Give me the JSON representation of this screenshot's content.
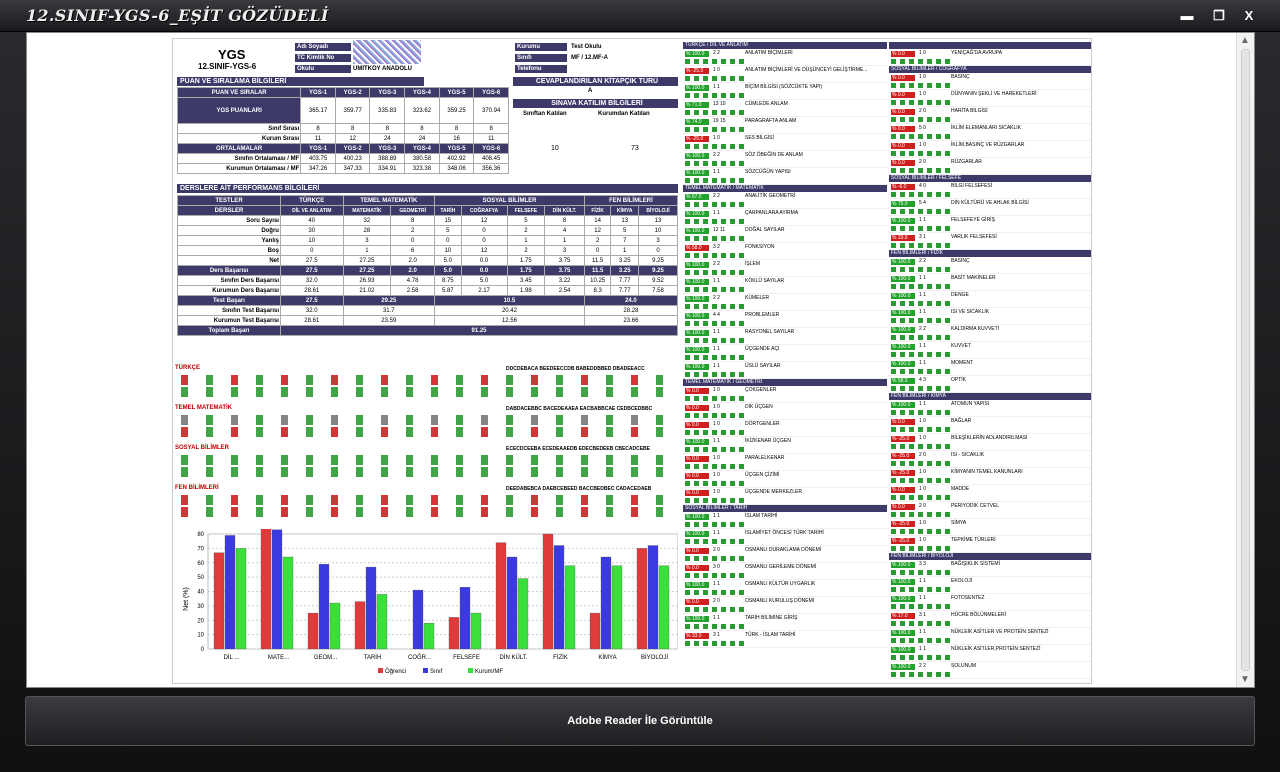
{
  "window": {
    "title": "12.SINIF-YGS-6_EŞİT GÖZÜDELİ",
    "minimize": "▬",
    "restore": "❐",
    "close": "X"
  },
  "report": {
    "exam": "YGS",
    "exam_sub": "12.SINIF-YGS-6",
    "info": [
      {
        "k": "Adı Soyadı",
        "v": ""
      },
      {
        "k": "TC Kimlik No",
        "v": ""
      },
      {
        "k": "Okulu",
        "v": "ÜMİTKÖY ANADOLU"
      }
    ],
    "info2": [
      {
        "k": "Kurumu",
        "v": "Test Okulu"
      },
      {
        "k": "Sınıfı",
        "v": "MF / 12.MF-A"
      },
      {
        "k": "Telefonu",
        "v": ""
      }
    ],
    "sec_puan": "PUAN VE SIRALAMA BİLGİLERİ",
    "sec_kitapcik": "CEVAPLANDIRILAN KİTAPÇIK TÜRÜ",
    "kitapcik": "A",
    "sec_katilim": "SINAVA KATILIM BİLGİLERİ",
    "katilim_h": [
      "Sınıftan Katılan",
      "Kurumdan Katılan"
    ],
    "katilim_v": [
      "10",
      "73"
    ],
    "puan_h": [
      "PUAN VE SIRALAR",
      "YGS-1",
      "YGS-2",
      "YGS-3",
      "YGS-4",
      "YGS-5",
      "YGS-6"
    ],
    "puan_label": "YGS PUANLARI",
    "puan": [
      "365.17",
      "359.77",
      "335.83",
      "323.62",
      "359.25",
      "370.94"
    ],
    "sinif_sira": {
      "k": "Sınıf Sırası",
      "v": [
        "8",
        "8",
        "8",
        "8",
        "8",
        "8"
      ]
    },
    "kurum_sira": {
      "k": "Kurum Sırası",
      "v": [
        "11",
        "12",
        "24",
        "24",
        "16",
        "11"
      ]
    },
    "ort_h": "ORTALAMALAR",
    "sinif_ort": {
      "k": "Sınıfın Ortalaması / MF",
      "v": [
        "403.75",
        "400.23",
        "388.89",
        "380.58",
        "402.92",
        "408.45"
      ]
    },
    "kurum_ort": {
      "k": "Kurumun Ortalaması / MF",
      "v": [
        "347.26",
        "347.33",
        "334.91",
        "323.38",
        "348.06",
        "356.36"
      ]
    },
    "sec_perf": "DERSLERE AİT PERFORMANS BİLGİLERİ",
    "perf_groups": [
      "TESTLER",
      "TÜRKÇE",
      "TEMEL MATEMATİK",
      "SOSYAL BİLİMLER",
      "FEN BİLİMLERİ"
    ],
    "perf_sub": [
      "DERSLER",
      "DİL VE ANLATIM",
      "MATEMATİK",
      "GEOMETRİ",
      "TARİH",
      "COĞRAFYA",
      "FELSEFE",
      "DİN KÜLT.",
      "FİZİK",
      "KİMYA",
      "BİYOLOJİ"
    ],
    "perf_rows": [
      {
        "k": "Soru Sayısı",
        "v": [
          "40",
          "32",
          "8",
          "15",
          "12",
          "5",
          "8",
          "14",
          "13",
          "13"
        ]
      },
      {
        "k": "Doğru",
        "v": [
          "30",
          "28",
          "2",
          "5",
          "0",
          "2",
          "4",
          "12",
          "5",
          "10"
        ]
      },
      {
        "k": "Yanlış",
        "v": [
          "10",
          "3",
          "0",
          "0",
          "0",
          "1",
          "1",
          "2",
          "7",
          "3"
        ]
      },
      {
        "k": "Boş",
        "v": [
          "0",
          "1",
          "6",
          "10",
          "12",
          "2",
          "3",
          "0",
          "1",
          "0"
        ]
      },
      {
        "k": "Net",
        "v": [
          "27.5",
          "27.25",
          "2.0",
          "5.0",
          "0.0",
          "1.75",
          "3.75",
          "11.5",
          "3.25",
          "9.25"
        ]
      }
    ],
    "perf_rows2": [
      {
        "k": "Ders Başarısı",
        "v": [
          "27.5",
          "27.25",
          "2.0",
          "5.0",
          "0.0",
          "1.75",
          "3.75",
          "11.5",
          "3.25",
          "9.25"
        ]
      },
      {
        "k": "Sınıfın Ders Başarısı",
        "v": [
          "32.0",
          "26.93",
          "4.78",
          "8.75",
          "5.0",
          "3.45",
          "3.22",
          "10.25",
          "7.77",
          "9.52"
        ]
      },
      {
        "k": "Kurumun Ders Başarısı",
        "v": [
          "28.61",
          "21.02",
          "2.58",
          "5.87",
          "2.17",
          "1.98",
          "2.54",
          "8.3",
          "7.77",
          "7.58"
        ]
      }
    ],
    "test_rows": [
      {
        "k": "Test Başarı",
        "v": [
          "27.5",
          "29.25",
          "10.5",
          "24.0"
        ]
      },
      {
        "k": "Sınıfın Test Başarısı",
        "v": [
          "32.0",
          "31.7",
          "20.42",
          "28.28"
        ]
      },
      {
        "k": "Kurumun Test Başarısı",
        "v": [
          "28.61",
          "23.59",
          "12.56",
          "23.66"
        ]
      }
    ],
    "toplam": {
      "k": "Toplam Başarı",
      "v": "91.25"
    },
    "answer_sections": [
      {
        "title": "TÜRKÇE",
        "key": "DDCDEBACA BEEDEECCDB BABEDDBBED DBADEEACC"
      },
      {
        "title": "TEMEL MATEMATİK",
        "key": "DABDACEBBC BACEDEAAEA EACBABBCAE CEDBCEDBBC"
      },
      {
        "title": "SOSYAL BİLİMLER",
        "key": "ECECDCEEBA ECEDEAAEDB EDECBEDEEB CBECADCEBE"
      },
      {
        "title": "FEN BİLİMLERİ",
        "key": "DEEDABEBCA DAEBCEBEED BACCBEDBEC CADACEDAEB"
      }
    ]
  },
  "chart_data": {
    "type": "bar",
    "categories": [
      "DİL ...",
      "MATE...",
      "GEOM...",
      "TARİH",
      "COĞR...",
      "FELSEFE",
      "DİN KÜLT.",
      "FİZİK",
      "KİMYA",
      "BİYOLOJİ"
    ],
    "ylabel": "Net (%)",
    "ylim": [
      0,
      80
    ],
    "yticks": [
      "0",
      "10",
      "20",
      "30",
      "40",
      "50",
      "60",
      "70",
      "80"
    ],
    "series": [
      {
        "name": "Öğrenci",
        "color": "#e03a3a",
        "values": [
          67,
          84,
          25,
          33,
          0,
          22,
          74,
          80,
          25,
          70
        ]
      },
      {
        "name": "Sınıf",
        "color": "#3a3ae0",
        "values": [
          79,
          83,
          59,
          57,
          41,
          43,
          64,
          72,
          64,
          72
        ]
      },
      {
        "name": "Kurum/MF",
        "color": "#3adf3a",
        "values": [
          70,
          64,
          32,
          38,
          18,
          25,
          49,
          58,
          58,
          58
        ]
      }
    ]
  },
  "topic_cols": [
    {
      "cat": "TÜRKÇE / DİL VE ANLATIM",
      "rows": [
        {
          "p": "% 100.0",
          "c": "g",
          "q": "2   2",
          "n": "ANLATIM BİÇİMLERİ"
        },
        {
          "p": "% -25.0",
          "c": "r",
          "q": "1   0",
          "n": "ANLATIM BİÇİMLERİ VE DÜŞÜNCEYİ GELİŞTİRME..."
        },
        {
          "p": "% 100.0",
          "c": "g",
          "q": "1   1",
          "n": "BİÇİM BİLGİSİ (SÖZCÜKTE YAPI)"
        },
        {
          "p": "% 71.0",
          "c": "g",
          "q": "13  10",
          "n": "CÜMLEDE ANLAM"
        },
        {
          "p": "% 74.0",
          "c": "g",
          "q": "19  15",
          "n": "PARAGRAFTA ANLAM"
        },
        {
          "p": "% -25.0",
          "c": "r",
          "q": "1   0",
          "n": "SES BİLGİSİ"
        },
        {
          "p": "% 100.0",
          "c": "g",
          "q": "2   2",
          "n": "SÖZ ÖBEĞİN DE ANLAM"
        },
        {
          "p": "% 100.0",
          "c": "g",
          "q": "1   1",
          "n": "SÖZCÜĞÜN YAPISI"
        }
      ]
    },
    {
      "cat": "TEMEL MATEMATİK / MATEMATİK",
      "rows": [
        {
          "p": "% 67.0",
          "c": "g",
          "q": "2   2",
          "n": "ANALİTİK GEOMETRİ"
        },
        {
          "p": "% 100.0",
          "c": "g",
          "q": "1   1",
          "n": "ÇARPANLARA AYIRMA"
        },
        {
          "p": "% 100.0",
          "c": "g",
          "q": "12  11",
          "n": "DOĞAL SAYILAR"
        },
        {
          "p": "% 58.0",
          "c": "r",
          "q": "3   2",
          "n": "FONKSİYON"
        },
        {
          "p": "% 100.0",
          "c": "g",
          "q": "2   2",
          "n": "İŞLEM"
        },
        {
          "p": "% 100.0",
          "c": "g",
          "q": "1   1",
          "n": "KÖKLÜ SAYILAR"
        },
        {
          "p": "% 100.0",
          "c": "g",
          "q": "2   2",
          "n": "KÜMELER"
        },
        {
          "p": "% 100.0",
          "c": "g",
          "q": "4   4",
          "n": "PROBLEMLER"
        },
        {
          "p": "% 100.0",
          "c": "g",
          "q": "1   1",
          "n": "RASYONEL SAYILAR"
        },
        {
          "p": "% 100.0",
          "c": "g",
          "q": "1   1",
          "n": "ÜÇGENDE AÇI"
        },
        {
          "p": "% 100.0",
          "c": "g",
          "q": "1   1",
          "n": "ÜSLÜ SAYILAR"
        }
      ]
    },
    {
      "cat": "TEMEL MATEMATİK / GEOMETRİ",
      "rows": [
        {
          "p": "% 0.0",
          "c": "r",
          "q": "1   0",
          "n": "ÇOKGENLER"
        },
        {
          "p": "% 0.0",
          "c": "r",
          "q": "1   0",
          "n": "DİK ÜÇGEN"
        },
        {
          "p": "% 0.0",
          "c": "r",
          "q": "1   0",
          "n": "DÖRTGENLER"
        },
        {
          "p": "% 100.0",
          "c": "g",
          "q": "1   1",
          "n": "İKİZKENAR ÜÇGEN"
        },
        {
          "p": "% 0.0",
          "c": "r",
          "q": "1   0",
          "n": "PARALELKENAR"
        },
        {
          "p": "% 0.0",
          "c": "r",
          "q": "1   0",
          "n": "ÜÇGEN ÇİZİMİ"
        },
        {
          "p": "% 0.0",
          "c": "r",
          "q": "1   0",
          "n": "ÜÇGENDE MERKEZLER"
        }
      ]
    },
    {
      "cat": "SOSYAL BİLİMLER / TARİH",
      "rows": [
        {
          "p": "% 100.0",
          "c": "g",
          "q": "1   1",
          "n": "İSLAM TARİHİ"
        },
        {
          "p": "% 100.0",
          "c": "g",
          "q": "1   1",
          "n": "İSLAMİYET ÖNCESİ TÜRK TARİHİ"
        },
        {
          "p": "% 0.0",
          "c": "r",
          "q": "2   0",
          "n": "OSMANLI DURAKLAMA DÖNEMİ"
        },
        {
          "p": "% 0.0",
          "c": "r",
          "q": "3   0",
          "n": "OSMANLI GERİLEME DÖNEMİ"
        },
        {
          "p": "% 100.0",
          "c": "g",
          "q": "1   1",
          "n": "OSMANLI KÜLTÜR UYGARLIK"
        },
        {
          "p": "% 0.0",
          "c": "r",
          "q": "2   0",
          "n": "OSMANLI KURULUŞ DÖNEMİ"
        },
        {
          "p": "% 100.0",
          "c": "g",
          "q": "1   1",
          "n": "TARİH BİLİMİNE GİRİŞ"
        },
        {
          "p": "% 33.0",
          "c": "r",
          "q": "3   1",
          "n": "TÜRK - İSLAM TARİHİ"
        }
      ]
    }
  ],
  "topic_cols2": [
    {
      "cat": "",
      "rows": [
        {
          "p": "% 0.0",
          "c": "r",
          "q": "1   0",
          "n": "YENİÇAĞ'DA AVRUPA"
        }
      ]
    },
    {
      "cat": "SOSYAL BİLİMLER / COĞRAFYA",
      "rows": [
        {
          "p": "% 0.0",
          "c": "r",
          "q": "1   0",
          "n": "BASINÇ"
        },
        {
          "p": "% 0.0",
          "c": "r",
          "q": "1   0",
          "n": "DÜNYANIN ŞEKLİ VE HAREKETLERİ"
        },
        {
          "p": "% 0.0",
          "c": "r",
          "q": "2   0",
          "n": "HARİTA BİLGİSİ"
        },
        {
          "p": "% 0.0",
          "c": "r",
          "q": "5   0",
          "n": "İKLİM ELEMANLARI SICAKLIK"
        },
        {
          "p": "% 0.0",
          "c": "r",
          "q": "1   0",
          "n": "İKLİM,BASINÇ VE RÜZGARLAR"
        },
        {
          "p": "% 0.0",
          "c": "r",
          "q": "2   0",
          "n": "RÜZGARLAR"
        }
      ]
    },
    {
      "cat": "SOSYAL BİLİMLER / FELSEFE",
      "rows": [
        {
          "p": "% -6.0",
          "c": "r",
          "q": "4   0",
          "n": "BİLGİ FELSEFESİ"
        },
        {
          "p": "% 75.0",
          "c": "g",
          "q": "5   4",
          "n": "DİN KÜLTÜRÜ VE AHLAK BİLGİSİ"
        },
        {
          "p": "% 100.0",
          "c": "g",
          "q": "1   1",
          "n": "FELSEFEYE GİRİŞ"
        },
        {
          "p": "% 33.0",
          "c": "r",
          "q": "3   1",
          "n": "VARLIK FELSEFESİ"
        }
      ]
    },
    {
      "cat": "FEN BİLİMLERİ / FİZİK",
      "rows": [
        {
          "p": "% 100.0",
          "c": "g",
          "q": "2   2",
          "n": "BASINÇ"
        },
        {
          "p": "% 100.0",
          "c": "g",
          "q": "1   1",
          "n": "BASİT MAKİNELER"
        },
        {
          "p": "% 100.0",
          "c": "g",
          "q": "1   1",
          "n": "DENGE"
        },
        {
          "p": "% 100.0",
          "c": "g",
          "q": "1   1",
          "n": "ISI VE SICAKLIK"
        },
        {
          "p": "% 100.0",
          "c": "g",
          "q": "2   2",
          "n": "KALDIRMA KUVVETİ"
        },
        {
          "p": "% 100.0",
          "c": "g",
          "q": "1   1",
          "n": "KUVVET"
        },
        {
          "p": "% 100.0",
          "c": "g",
          "q": "1   1",
          "n": "MOMENT"
        },
        {
          "p": "% 58.0",
          "c": "g",
          "q": "4   3",
          "n": "OPTİK"
        }
      ]
    },
    {
      "cat": "FEN BİLİMLERİ / KİMYA",
      "rows": [
        {
          "p": "% 100.0",
          "c": "g",
          "q": "1   1",
          "n": "ATOMUN YAPISI"
        },
        {
          "p": "% 0.0",
          "c": "r",
          "q": "1   0",
          "n": "BAĞLAR"
        },
        {
          "p": "% -25.0",
          "c": "r",
          "q": "1   0",
          "n": "BİLEŞİKLERİN ADLANDIRILMASI"
        },
        {
          "p": "% -25.0",
          "c": "r",
          "q": "2   0",
          "n": "ISI - SICAKLIK"
        },
        {
          "p": "% -25.0",
          "c": "r",
          "q": "1   0",
          "n": "KİMYANIN TEMEL KANUNLARI"
        },
        {
          "p": "% 0.0",
          "c": "r",
          "q": "1   0",
          "n": "MADDE"
        },
        {
          "p": "% 0.0",
          "c": "r",
          "q": "2   0",
          "n": "PERİYODİK CETVEL"
        },
        {
          "p": "% -25.0",
          "c": "r",
          "q": "1   0",
          "n": "SİMYA"
        },
        {
          "p": "% -25.0",
          "c": "r",
          "q": "1   0",
          "n": "TEPKİME TÜRLERİ"
        }
      ]
    },
    {
      "cat": "FEN BİLİMLERİ / BİYOLOJİ",
      "rows": [
        {
          "p": "% 100.0",
          "c": "g",
          "q": "3   3",
          "n": "BAĞIŞIKLIK SİSTEMİ"
        },
        {
          "p": "% 100.0",
          "c": "g",
          "q": "1   1",
          "n": "EKOLOJİ"
        },
        {
          "p": "% 100.0",
          "c": "g",
          "q": "1   1",
          "n": "FOTOSENTEZ"
        },
        {
          "p": "% 17.0",
          "c": "r",
          "q": "3   1",
          "n": "HÜCRE BÖLÜNMELERİ"
        },
        {
          "p": "% 100.0",
          "c": "g",
          "q": "1   1",
          "n": "NÜKLEİK ASİTLER VE PROTEİN SENTEZİ"
        },
        {
          "p": "% 100.0",
          "c": "g",
          "q": "1   1",
          "n": "NÜKLEİK ASİTLER,PROTEİN SENTEZİ"
        },
        {
          "p": "% 100.0",
          "c": "g",
          "q": "2   2",
          "n": "SOLUNUM"
        }
      ]
    }
  ],
  "footer": {
    "button": "Adobe Reader İle Görüntüle"
  }
}
